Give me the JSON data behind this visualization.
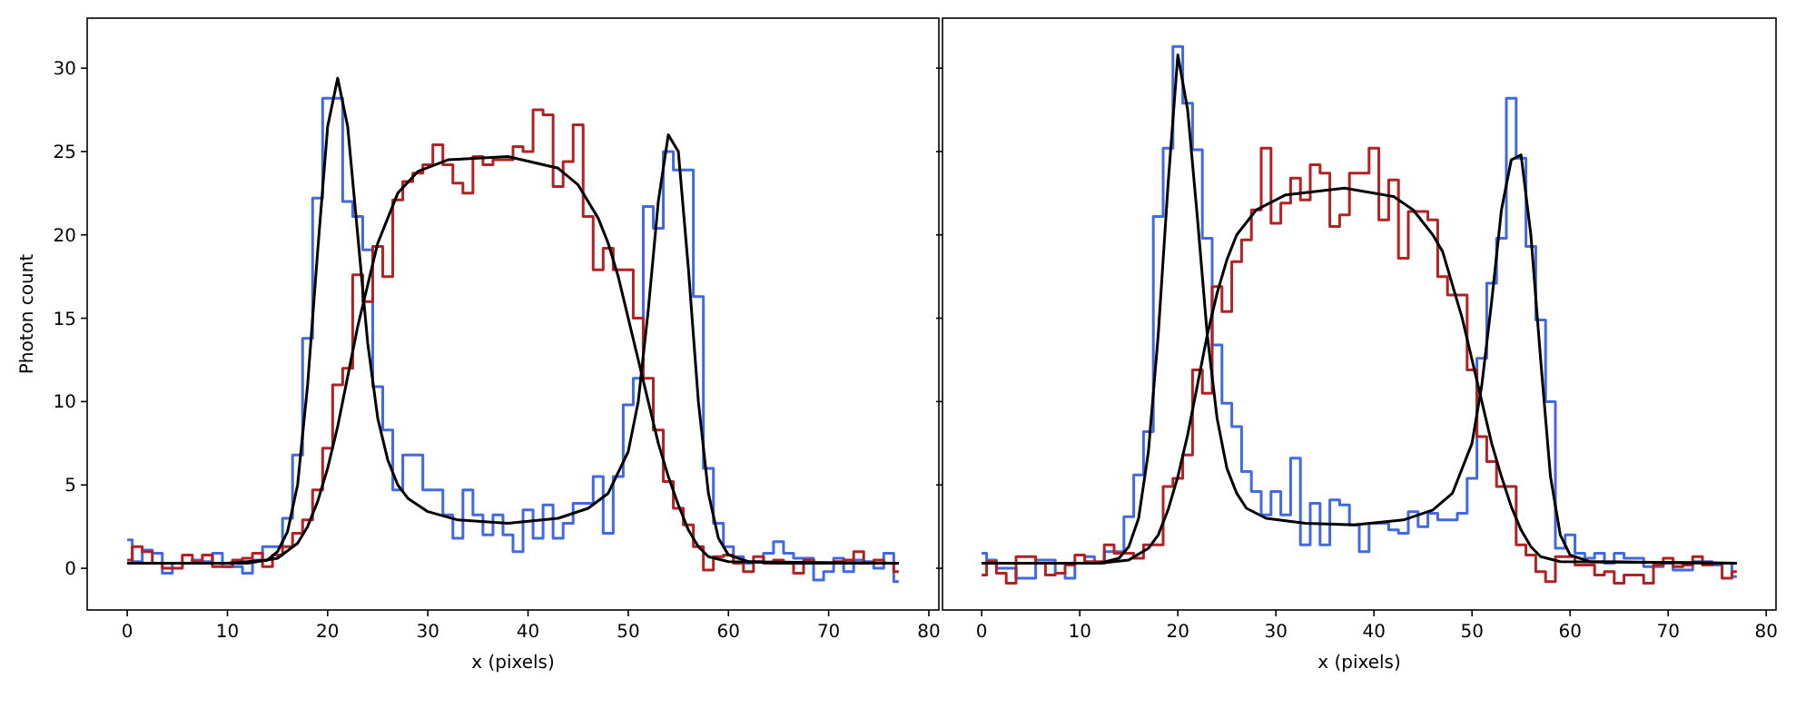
{
  "chart_data": [
    {
      "type": "step",
      "ylabel": "Photon count",
      "xlabel": "x (pixels)",
      "xlim": [
        -4,
        81
      ],
      "ylim": [
        -2.5,
        33
      ],
      "xticks": [
        0,
        10,
        20,
        30,
        40,
        50,
        60,
        70,
        80
      ],
      "yticks": [
        0,
        5,
        10,
        15,
        20,
        25,
        30
      ],
      "grid": false,
      "x": [
        0,
        1,
        2,
        3,
        4,
        5,
        6,
        7,
        8,
        9,
        10,
        11,
        12,
        13,
        14,
        15,
        16,
        17,
        18,
        19,
        20,
        21,
        22,
        23,
        24,
        25,
        26,
        27,
        28,
        29,
        30,
        31,
        32,
        33,
        34,
        35,
        36,
        37,
        38,
        39,
        40,
        41,
        42,
        43,
        44,
        45,
        46,
        47,
        48,
        49,
        50,
        51,
        52,
        53,
        54,
        55,
        56,
        57,
        58,
        59,
        60,
        61,
        62,
        63,
        64,
        65,
        66,
        67,
        68,
        69,
        70,
        71,
        72,
        73,
        74,
        75,
        76,
        77
      ],
      "series": [
        {
          "color": "#4169e1",
          "values": [
            1.7,
            0.4,
            1.1,
            0.9,
            -0.3,
            0.3,
            0.3,
            0.5,
            0.4,
            0.9,
            0.1,
            0.1,
            -0.3,
            0.5,
            1.3,
            1.3,
            3.0,
            6.8,
            13.8,
            22.2,
            28.2,
            28.2,
            22.0,
            21.1,
            19.1,
            10.9,
            8.3,
            4.7,
            6.8,
            6.8,
            4.7,
            4.7,
            3.2,
            1.8,
            4.7,
            3.2,
            2.0,
            3.2,
            2.0,
            1.0,
            3.5,
            1.8,
            3.8,
            1.8,
            2.7,
            3.9,
            3.9,
            5.5,
            2.1,
            5.5,
            9.8,
            11.4,
            21.7,
            20.4,
            25.0,
            23.9,
            23.9,
            16.3,
            6.0,
            2.7,
            1.3,
            0.7,
            0.3,
            0.4,
            0.9,
            1.6,
            0.9,
            0.6,
            0.6,
            -0.7,
            -0.2,
            0.6,
            -0.2,
            0.5,
            0.4,
            0,
            0.9,
            -0.8
          ]
        },
        {
          "color": "#b22222",
          "values": [
            0.5,
            1.3,
            1.0,
            0.3,
            0,
            0,
            0.8,
            0.4,
            0.8,
            0.1,
            0.1,
            0.5,
            0.6,
            0.9,
            0.1,
            0.8,
            1.3,
            2.1,
            2.9,
            4.7,
            7.2,
            11.0,
            12.0,
            17.6,
            16.0,
            19.3,
            17.5,
            22.1,
            23.2,
            23.7,
            24.2,
            25.4,
            24.2,
            23.1,
            22.5,
            24.7,
            24.2,
            24.5,
            24.5,
            25.3,
            25.0,
            27.5,
            27.2,
            22.9,
            24.4,
            26.6,
            21.1,
            17.9,
            19.2,
            17.9,
            17.9,
            15.0,
            11.4,
            8.3,
            5.2,
            3.6,
            2.6,
            1.3,
            -0.1,
            0.7,
            0.8,
            0.3,
            -0.2,
            0.7,
            0.3,
            0.5,
            0.3,
            -0.3,
            0.5,
            0.3,
            0.3,
            0.4,
            0.5,
            1.0,
            0.3,
            0.5,
            0.3,
            -0.2
          ]
        },
        {
          "type": "line",
          "color": "#000000",
          "x": [
            0,
            10,
            14,
            15,
            16,
            17,
            18,
            19,
            20,
            21,
            22,
            23,
            24,
            25,
            26,
            27,
            28,
            30,
            33,
            38,
            43,
            46,
            48,
            50,
            51,
            52,
            53,
            54,
            55,
            56,
            57,
            58,
            59,
            60,
            62,
            65,
            77
          ],
          "values": [
            0.3,
            0.3,
            0.5,
            1.0,
            2.2,
            5.0,
            11.0,
            19.0,
            26.5,
            29.4,
            26.5,
            20.0,
            13.5,
            9.0,
            6.5,
            5.0,
            4.2,
            3.4,
            2.9,
            2.7,
            3.0,
            3.6,
            4.5,
            7.0,
            10.0,
            15.5,
            22.0,
            26.0,
            25.0,
            18.0,
            10.0,
            4.5,
            1.8,
            0.8,
            0.4,
            0.3,
            0.3
          ]
        },
        {
          "type": "line",
          "color": "#000000",
          "x": [
            0,
            12,
            15,
            17,
            18,
            19,
            20,
            21,
            22,
            23,
            24,
            25,
            26,
            27,
            29,
            32,
            38,
            43,
            45,
            47,
            48,
            49,
            50,
            51,
            52,
            53,
            54,
            55,
            56,
            57,
            58,
            60,
            77
          ],
          "values": [
            0.3,
            0.3,
            0.6,
            1.5,
            2.5,
            4.0,
            6.0,
            8.5,
            11.5,
            14.5,
            17.0,
            19.5,
            21.0,
            22.5,
            23.8,
            24.5,
            24.7,
            24.0,
            23.0,
            21.0,
            19.5,
            17.5,
            15.0,
            12.5,
            10.0,
            7.5,
            5.5,
            3.8,
            2.3,
            1.3,
            0.7,
            0.4,
            0.3
          ]
        }
      ]
    },
    {
      "type": "step",
      "xlabel": "x (pixels)",
      "xlim": [
        -4,
        81
      ],
      "ylim": [
        -2.5,
        33
      ],
      "xticks": [
        0,
        10,
        20,
        30,
        40,
        50,
        60,
        70,
        80
      ],
      "yticks": [
        0,
        5,
        10,
        15,
        20,
        25,
        30
      ],
      "tick_labels": "x",
      "grid": false,
      "x": [
        0,
        1,
        2,
        3,
        4,
        5,
        6,
        7,
        8,
        9,
        10,
        11,
        12,
        13,
        14,
        15,
        16,
        17,
        18,
        19,
        20,
        21,
        22,
        23,
        24,
        25,
        26,
        27,
        28,
        29,
        30,
        31,
        32,
        33,
        34,
        35,
        36,
        37,
        38,
        39,
        40,
        41,
        42,
        43,
        44,
        45,
        46,
        47,
        48,
        49,
        50,
        51,
        52,
        53,
        54,
        55,
        56,
        57,
        58,
        59,
        60,
        61,
        62,
        63,
        64,
        65,
        66,
        67,
        68,
        69,
        70,
        71,
        72,
        73,
        74,
        75,
        76,
        77
      ],
      "series": [
        {
          "color": "#4169e1",
          "values": [
            0.9,
            0.5,
            0.0,
            0.0,
            -0.6,
            -0.6,
            0.5,
            0.5,
            -0.3,
            -0.6,
            0.3,
            0.7,
            0.3,
            1.0,
            1.0,
            3.1,
            5.6,
            8.2,
            21.1,
            25.2,
            31.3,
            27.9,
            25.1,
            19.8,
            13.4,
            9.9,
            8.5,
            5.8,
            4.6,
            3.2,
            4.6,
            3.2,
            6.6,
            1.4,
            3.9,
            1.4,
            4.1,
            3.8,
            2.6,
            1.0,
            2.7,
            2.7,
            2.3,
            2.1,
            3.4,
            2.5,
            3.3,
            2.9,
            2.9,
            3.3,
            5.4,
            12.6,
            17.1,
            19.8,
            28.2,
            24.6,
            19.3,
            14.9,
            10.0,
            1.2,
            2.0,
            0.9,
            0.6,
            0.9,
            0.3,
            0.9,
            0.6,
            0.6,
            0.1,
            0.1,
            0.3,
            -0.1,
            -0.1,
            0.4,
            0.4,
            0.2,
            0.3,
            -0.5
          ]
        },
        {
          "color": "#b22222",
          "values": [
            -0.4,
            0.4,
            -0.3,
            -0.9,
            0.7,
            0.7,
            0.3,
            -0.4,
            -0.3,
            0.2,
            0.8,
            0.4,
            0.4,
            1.4,
            0.9,
            0.9,
            0.6,
            1.4,
            1.4,
            4.9,
            5.4,
            6.8,
            11.9,
            10.5,
            16.9,
            15.4,
            18.4,
            19.7,
            21.5,
            25.2,
            20.7,
            21.9,
            23.4,
            22.1,
            24.2,
            23.7,
            20.5,
            21.2,
            23.7,
            23.7,
            25.2,
            20.9,
            23.3,
            18.6,
            21.4,
            21.4,
            20.9,
            17.5,
            16.4,
            16.4,
            11.9,
            7.9,
            6.4,
            4.9,
            4.9,
            1.4,
            0.8,
            -0.2,
            -0.8,
            0.7,
            0.7,
            0.2,
            0.2,
            -0.4,
            -0.2,
            -0.9,
            -0.4,
            -0.4,
            -0.9,
            0.2,
            0.6,
            0.1,
            0.2,
            0.7,
            0.2,
            0.3,
            -0.6,
            -0.2
          ]
        },
        {
          "type": "line",
          "color": "#000000",
          "x": [
            0,
            12,
            14,
            15,
            16,
            17,
            18,
            19,
            20,
            21,
            22,
            23,
            24,
            25,
            26,
            27,
            29,
            33,
            38,
            43,
            46,
            48,
            50,
            51,
            52,
            53,
            54,
            55,
            56,
            57,
            58,
            59,
            60,
            62,
            77
          ],
          "values": [
            0.3,
            0.3,
            0.6,
            1.3,
            3.0,
            7.0,
            14.0,
            23.0,
            30.8,
            27.5,
            21.0,
            14.0,
            9.0,
            6.0,
            4.5,
            3.6,
            3.0,
            2.7,
            2.6,
            2.9,
            3.5,
            4.5,
            7.5,
            11.0,
            16.0,
            21.5,
            24.5,
            24.8,
            20.0,
            12.5,
            5.5,
            2.0,
            0.8,
            0.4,
            0.3
          ]
        },
        {
          "type": "line",
          "color": "#000000",
          "x": [
            0,
            12,
            15,
            17,
            18,
            19,
            20,
            21,
            22,
            23,
            24,
            25,
            26,
            28,
            31,
            37,
            42,
            44,
            46,
            47,
            48,
            49,
            50,
            51,
            52,
            53,
            54,
            55,
            56,
            57,
            59,
            77
          ],
          "values": [
            0.3,
            0.3,
            0.5,
            1.2,
            2.0,
            3.5,
            5.5,
            8.0,
            11.0,
            14.0,
            16.5,
            18.5,
            20.0,
            21.5,
            22.4,
            22.8,
            22.3,
            21.5,
            20.0,
            19.0,
            17.0,
            15.0,
            12.5,
            10.0,
            7.5,
            5.5,
            3.7,
            2.3,
            1.3,
            0.7,
            0.4,
            0.3
          ]
        }
      ]
    }
  ]
}
